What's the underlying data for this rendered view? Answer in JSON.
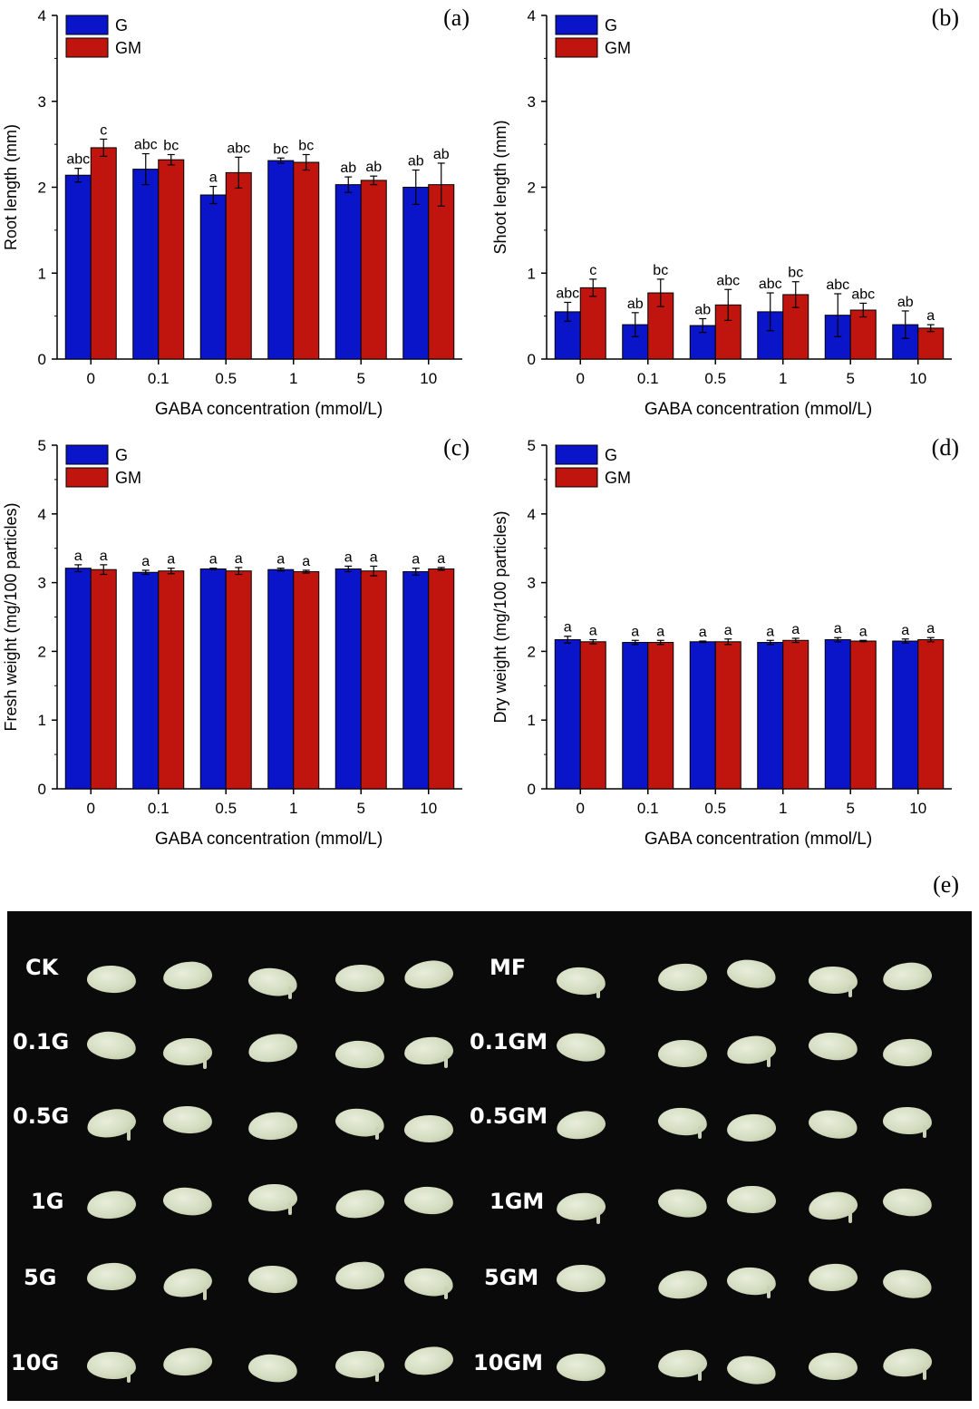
{
  "colors": {
    "G": "#0a14c8",
    "GM": "#c0140f",
    "axis": "#000000",
    "photo_bg": "#0a0a0a",
    "seed": "#dbe2c8"
  },
  "charts": [
    {
      "id": "a",
      "panel_label": "(a)",
      "ylabel": "Root length (mm)",
      "xlabel": "GABA concentration (mmol/L)",
      "ylim": [
        0,
        4
      ],
      "yticks": [
        "0",
        "1",
        "2",
        "3",
        "4"
      ],
      "legend": [
        "G",
        "GM"
      ]
    },
    {
      "id": "b",
      "panel_label": "(b)",
      "ylabel": "Shoot length (mm)",
      "xlabel": "GABA concentration (mmol/L)",
      "ylim": [
        0,
        4
      ],
      "yticks": [
        "0",
        "1",
        "2",
        "3",
        "4"
      ],
      "legend": [
        "G",
        "GM"
      ]
    },
    {
      "id": "c",
      "panel_label": "(c)",
      "ylabel": "Fresh weight (mg/100 particles)",
      "xlabel": "GABA concentration (mmol/L)",
      "ylim": [
        0,
        5
      ],
      "yticks": [
        "0",
        "1",
        "2",
        "3",
        "4",
        "5"
      ],
      "legend": [
        "G",
        "GM"
      ]
    },
    {
      "id": "d",
      "panel_label": "(d)",
      "ylabel": "Dry weight (mg/100 particles)",
      "xlabel": "GABA concentration (mmol/L)",
      "ylim": [
        0,
        5
      ],
      "yticks": [
        "0",
        "1",
        "2",
        "3",
        "4",
        "5"
      ],
      "legend": [
        "G",
        "GM"
      ]
    }
  ],
  "chart_data": [
    {
      "type": "bar",
      "title": "(a)",
      "xlabel": "GABA concentration (mmol/L)",
      "ylabel": "Root length (mm)",
      "ylim": [
        0,
        4
      ],
      "categories": [
        "0",
        "0.1",
        "0.5",
        "1",
        "5",
        "10"
      ],
      "series": [
        {
          "name": "G",
          "values": [
            2.14,
            2.21,
            1.91,
            2.31,
            2.03,
            2.0
          ],
          "errors": [
            0.08,
            0.18,
            0.1,
            0.03,
            0.09,
            0.2
          ],
          "letters": [
            "abc",
            "abc",
            "a",
            "bc",
            "ab",
            "ab"
          ]
        },
        {
          "name": "GM",
          "values": [
            2.46,
            2.32,
            2.17,
            2.29,
            2.08,
            2.03
          ],
          "errors": [
            0.1,
            0.06,
            0.18,
            0.09,
            0.05,
            0.25
          ],
          "letters": [
            "c",
            "bc",
            "abc",
            "bc",
            "ab",
            "ab"
          ]
        }
      ]
    },
    {
      "type": "bar",
      "title": "(b)",
      "xlabel": "GABA concentration (mmol/L)",
      "ylabel": "Shoot length (mm)",
      "ylim": [
        0,
        4
      ],
      "categories": [
        "0",
        "0.1",
        "0.5",
        "1",
        "5",
        "10"
      ],
      "series": [
        {
          "name": "G",
          "values": [
            0.55,
            0.4,
            0.39,
            0.55,
            0.51,
            0.4
          ],
          "errors": [
            0.11,
            0.14,
            0.08,
            0.22,
            0.25,
            0.16
          ],
          "letters": [
            "abc",
            "ab",
            "ab",
            "abc",
            "abc",
            "ab"
          ]
        },
        {
          "name": "GM",
          "values": [
            0.83,
            0.77,
            0.63,
            0.75,
            0.57,
            0.36
          ],
          "errors": [
            0.1,
            0.16,
            0.18,
            0.15,
            0.08,
            0.04
          ],
          "letters": [
            "c",
            "bc",
            "abc",
            "bc",
            "abc",
            "a"
          ]
        }
      ]
    },
    {
      "type": "bar",
      "title": "(c)",
      "xlabel": "GABA concentration (mmol/L)",
      "ylabel": "Fresh weight (mg/100 particles)",
      "ylim": [
        0,
        5
      ],
      "categories": [
        "0",
        "0.1",
        "0.5",
        "1",
        "5",
        "10"
      ],
      "series": [
        {
          "name": "G",
          "values": [
            3.21,
            3.15,
            3.2,
            3.19,
            3.2,
            3.16
          ],
          "errors": [
            0.05,
            0.03,
            0.01,
            0.02,
            0.04,
            0.05
          ],
          "letters": [
            "a",
            "a",
            "a",
            "a",
            "a",
            "a"
          ]
        },
        {
          "name": "GM",
          "values": [
            3.19,
            3.17,
            3.17,
            3.16,
            3.17,
            3.2
          ],
          "errors": [
            0.07,
            0.04,
            0.05,
            0.02,
            0.07,
            0.02
          ],
          "letters": [
            "a",
            "a",
            "a",
            "a",
            "a",
            "a"
          ]
        }
      ]
    },
    {
      "type": "bar",
      "title": "(d)",
      "xlabel": "GABA concentration (mmol/L)",
      "ylabel": "Dry weight (mg/100 particles)",
      "ylim": [
        0,
        5
      ],
      "categories": [
        "0",
        "0.1",
        "0.5",
        "1",
        "5",
        "10"
      ],
      "series": [
        {
          "name": "G",
          "values": [
            2.17,
            2.13,
            2.14,
            2.13,
            2.17,
            2.15
          ],
          "errors": [
            0.05,
            0.03,
            0.01,
            0.03,
            0.03,
            0.03
          ],
          "letters": [
            "a",
            "a",
            "a",
            "a",
            "a",
            "a"
          ]
        },
        {
          "name": "GM",
          "values": [
            2.14,
            2.13,
            2.14,
            2.16,
            2.15,
            2.17
          ],
          "errors": [
            0.03,
            0.03,
            0.04,
            0.03,
            0.01,
            0.03
          ],
          "letters": [
            "a",
            "a",
            "a",
            "a",
            "a",
            "a"
          ]
        }
      ]
    }
  ],
  "photo": {
    "panel_label": "(e)",
    "left_labels": [
      "CK",
      "0.1G",
      "0.5G",
      "1G",
      "5G",
      "10G"
    ],
    "right_labels": [
      "MF",
      "0.1GM",
      "0.5GM",
      "1GM",
      "5GM",
      "10GM"
    ]
  }
}
